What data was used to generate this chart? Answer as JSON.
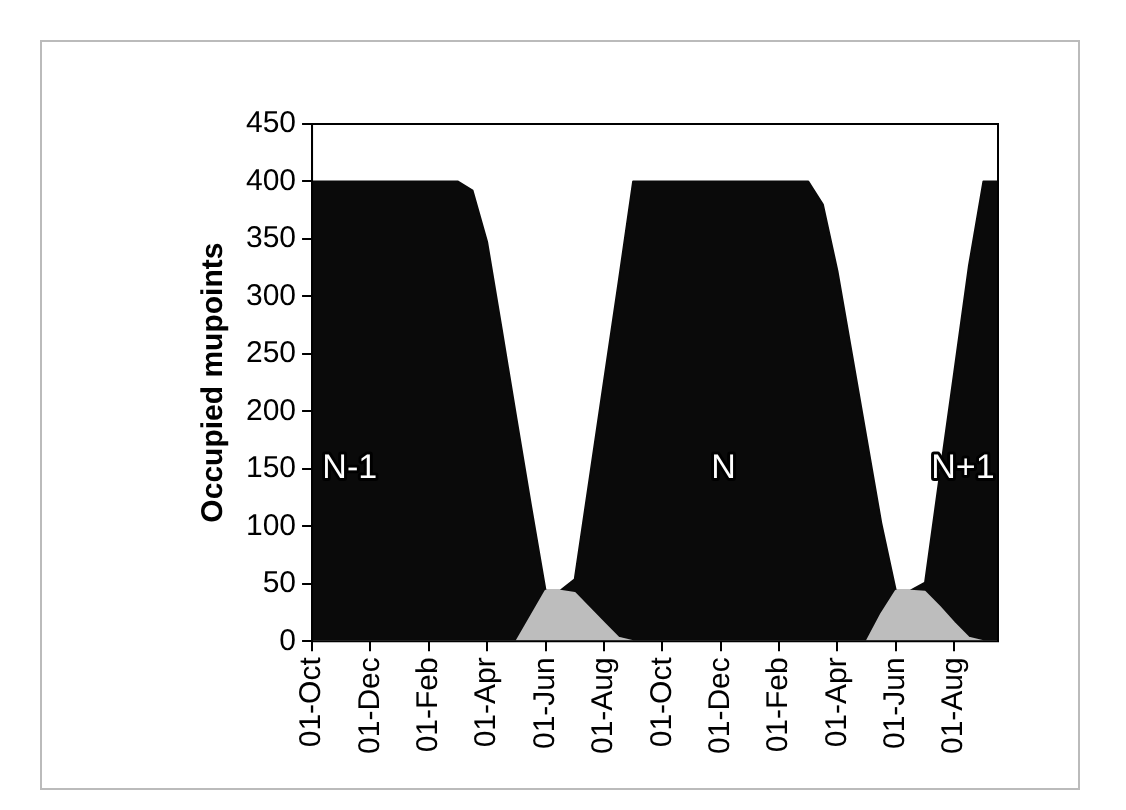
{
  "chart_data": {
    "type": "area",
    "stacked": true,
    "ylabel": "Occupied mupoints",
    "categories": [
      "01-Oct",
      null,
      null,
      null,
      "01-Dec",
      null,
      null,
      null,
      "01-Feb",
      null,
      null,
      null,
      "01-Apr",
      null,
      null,
      null,
      "01-Jun",
      null,
      null,
      null,
      "01-Aug",
      null,
      null,
      null,
      "01-Oct",
      null,
      null,
      null,
      "01-Dec",
      null,
      null,
      null,
      "01-Feb",
      null,
      null,
      null,
      "01-Apr",
      null,
      null,
      null,
      "01-Jun",
      null,
      null,
      null,
      "01-Aug",
      null,
      null,
      null
    ],
    "series": [
      {
        "color": "#bdbdbd",
        "values": [
          0,
          0,
          0,
          0,
          0,
          0,
          0,
          0,
          0,
          0,
          0,
          0,
          0,
          0,
          0,
          22,
          44,
          44,
          42,
          29,
          16,
          3,
          0,
          0,
          0,
          0,
          0,
          0,
          0,
          0,
          0,
          0,
          0,
          0,
          0,
          0,
          0,
          0,
          0,
          24,
          44,
          44,
          43,
          30,
          16,
          3,
          0,
          0
        ]
      },
      {
        "color": "#0a0a0a",
        "values": [
          400,
          400,
          400,
          400,
          400,
          400,
          400,
          400,
          400,
          400,
          400,
          392,
          347,
          271,
          194,
          96,
          0,
          0,
          12,
          111,
          210,
          309,
          400,
          400,
          400,
          400,
          400,
          400,
          400,
          400,
          400,
          400,
          400,
          400,
          400,
          380,
          322,
          249,
          176,
          79,
          0,
          0,
          8,
          113,
          218,
          323,
          400,
          400
        ]
      }
    ],
    "ylim": [
      0,
      450
    ],
    "yticks": [
      0,
      50,
      100,
      150,
      200,
      250,
      300,
      350,
      400,
      450
    ],
    "annotations": [
      "N-1",
      "N",
      "N+1"
    ],
    "grid": false,
    "legend": false
  }
}
